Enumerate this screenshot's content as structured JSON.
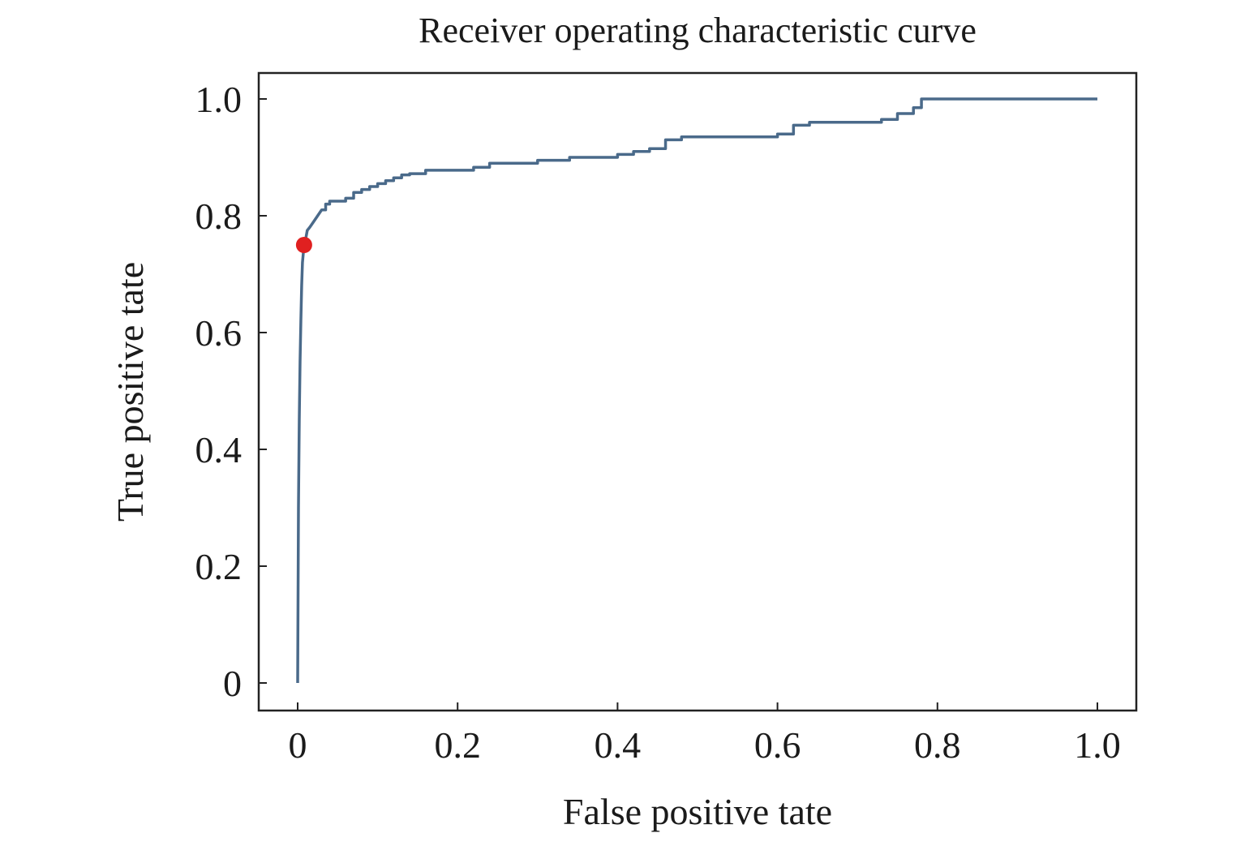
{
  "chart_data": {
    "type": "line",
    "title": "Receiver operating characteristic curve",
    "xlabel": "False positive tate",
    "ylabel": "True positive tate",
    "xlim": [
      -0.05,
      1.05
    ],
    "ylim": [
      -0.05,
      1.05
    ],
    "grid": false,
    "x_ticks": [
      0,
      0.2,
      0.4,
      0.6,
      0.8,
      1.0
    ],
    "x_tick_labels": [
      "0",
      "0.2",
      "0.4",
      "0.6",
      "0.8",
      "1.0"
    ],
    "y_ticks": [
      0,
      0.2,
      0.4,
      0.6,
      0.8,
      1.0
    ],
    "y_tick_labels": [
      "0",
      "0.2",
      "0.4",
      "0.6",
      "0.8",
      "1.0"
    ],
    "series": [
      {
        "color": "#4a6a8a",
        "x": [
          0.0,
          0.001,
          0.002,
          0.003,
          0.004,
          0.005,
          0.006,
          0.008,
          0.01,
          0.012,
          0.015,
          0.02,
          0.025,
          0.03,
          0.035,
          0.04,
          0.045,
          0.05,
          0.06,
          0.07,
          0.08,
          0.09,
          0.1,
          0.11,
          0.12,
          0.13,
          0.14,
          0.16,
          0.18,
          0.2,
          0.22,
          0.24,
          0.28,
          0.3,
          0.34,
          0.4,
          0.42,
          0.44,
          0.46,
          0.48,
          0.5,
          0.6,
          0.62,
          0.64,
          0.68,
          0.73,
          0.75,
          0.77,
          0.78,
          1.0
        ],
        "y": [
          0.0,
          0.3,
          0.45,
          0.55,
          0.62,
          0.68,
          0.72,
          0.75,
          0.76,
          0.775,
          0.78,
          0.79,
          0.8,
          0.81,
          0.82,
          0.825,
          0.825,
          0.825,
          0.83,
          0.84,
          0.845,
          0.85,
          0.855,
          0.86,
          0.865,
          0.87,
          0.872,
          0.878,
          0.878,
          0.878,
          0.883,
          0.89,
          0.89,
          0.895,
          0.9,
          0.905,
          0.91,
          0.915,
          0.93,
          0.935,
          0.935,
          0.94,
          0.955,
          0.96,
          0.96,
          0.965,
          0.975,
          0.985,
          1.0,
          1.0
        ]
      }
    ],
    "highlight_point": {
      "x": 0.008,
      "y": 0.75,
      "color": "#e02020"
    }
  }
}
